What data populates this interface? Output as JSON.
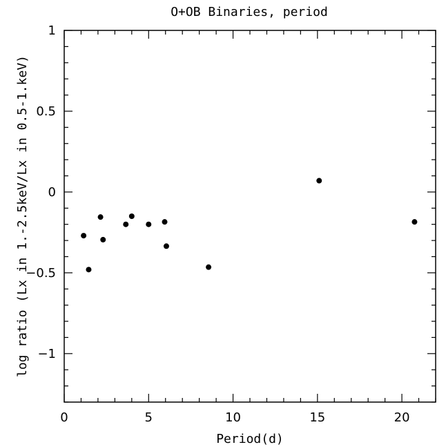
{
  "chart_data": {
    "type": "scatter",
    "title": "O+OB Binaries, period",
    "xlabel": "Period(d)",
    "ylabel": "log ratio (Lx in 1.-2.5keV/Lx in 0.5-1.keV)",
    "xlim": [
      0,
      22
    ],
    "ylim": [
      -1.3,
      1
    ],
    "x_ticks": [
      0,
      5,
      10,
      15,
      20
    ],
    "y_ticks": [
      1,
      0.5,
      0,
      -0.5,
      -1
    ],
    "x_tick_labels": [
      "0",
      "5",
      "10",
      "15",
      "20"
    ],
    "y_tick_labels": [
      "1",
      "0.5",
      "0",
      "−0.5",
      "−1"
    ],
    "grid": false,
    "marker_color": "#000000",
    "points": [
      {
        "x": 1.15,
        "y": -0.27
      },
      {
        "x": 1.45,
        "y": -0.48
      },
      {
        "x": 2.15,
        "y": -0.155
      },
      {
        "x": 2.3,
        "y": -0.295
      },
      {
        "x": 3.65,
        "y": -0.2
      },
      {
        "x": 4.0,
        "y": -0.15
      },
      {
        "x": 5.0,
        "y": -0.2
      },
      {
        "x": 5.95,
        "y": -0.185
      },
      {
        "x": 6.05,
        "y": -0.335
      },
      {
        "x": 8.55,
        "y": -0.465
      },
      {
        "x": 15.1,
        "y": 0.07
      },
      {
        "x": 20.75,
        "y": -0.185
      }
    ]
  }
}
